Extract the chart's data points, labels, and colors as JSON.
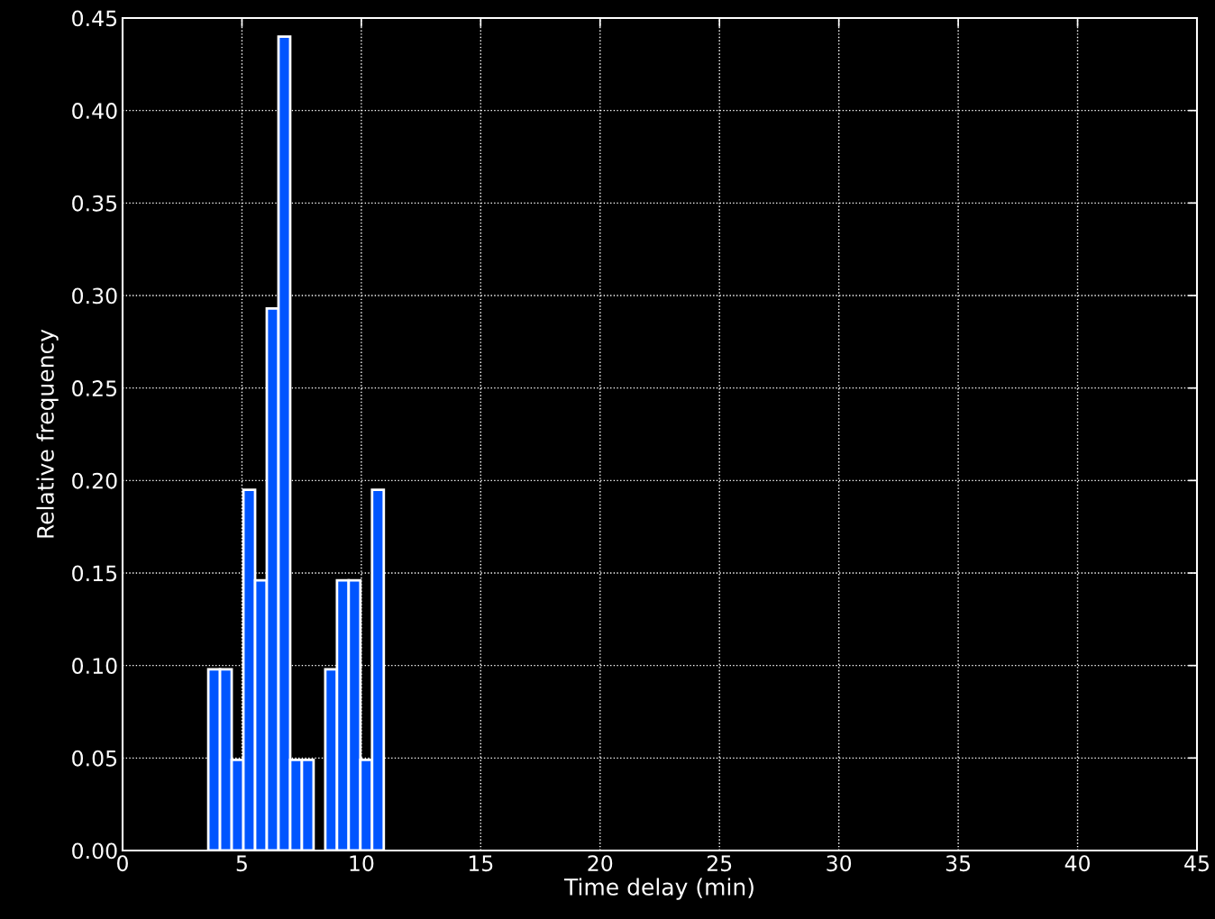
{
  "chart_data": {
    "type": "histogram",
    "xlabel": "Time delay (min)",
    "ylabel": "Relative frequency",
    "bins": [
      3.59,
      4.08,
      4.57,
      5.06,
      5.55,
      6.04,
      6.53,
      7.02,
      7.51,
      8.0,
      8.49,
      8.98,
      9.47,
      9.96,
      10.45,
      10.94
    ],
    "values": [
      0.098,
      0.098,
      0.049,
      0.195,
      0.146,
      0.293,
      0.44,
      0.049,
      0.049,
      0,
      0.098,
      0.146,
      0.146,
      0.049,
      0.195
    ],
    "color": "#0055ff",
    "xlim": [
      0,
      45
    ],
    "xticks": [
      0,
      5,
      10,
      15,
      20,
      25,
      30,
      35,
      40,
      45
    ],
    "ylim": [
      0,
      0.45
    ],
    "yticks": [
      {
        "value": 0,
        "label": "0.00"
      },
      {
        "value": 0.05,
        "label": "0.05"
      },
      {
        "value": 0.1,
        "label": "0.10"
      },
      {
        "value": 0.15,
        "label": "0.15"
      },
      {
        "value": 0.2,
        "label": "0.20"
      },
      {
        "value": 0.25,
        "label": "0.25"
      },
      {
        "value": 0.3,
        "label": "0.30"
      },
      {
        "value": 0.35,
        "label": "0.35"
      },
      {
        "value": 0.4,
        "label": "0.40"
      },
      {
        "value": 0.45,
        "label": "0.45"
      }
    ],
    "grid": true
  }
}
